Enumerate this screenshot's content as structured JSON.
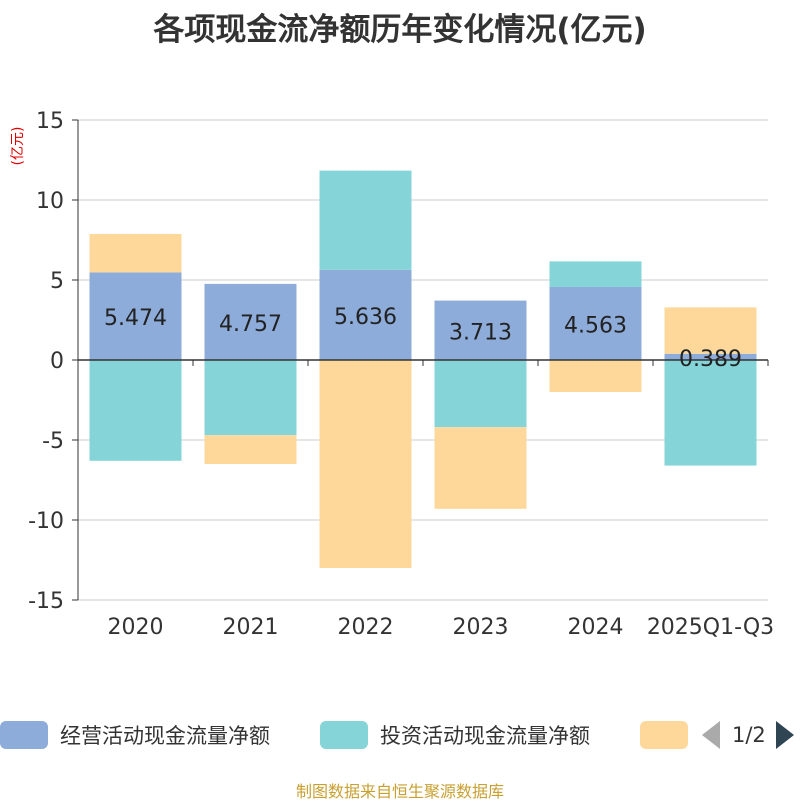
{
  "title": "各项现金流净额历年变化情况(亿元)",
  "footer": "制图数据来自恒生聚源数据库",
  "pager": "1/2",
  "colors": {
    "operating": "#8eacda",
    "investing": "#85d5d8",
    "financing": "#fdd89a"
  },
  "chart_data": {
    "type": "bar",
    "stacked": true,
    "ylabel": "(亿元)",
    "ylim": [
      -15,
      15
    ],
    "yticks": [
      -15,
      -10,
      -5,
      0,
      5,
      10,
      15
    ],
    "grid": true,
    "legend_position": "bottom",
    "categories": [
      "2020",
      "2021",
      "2022",
      "2023",
      "2024",
      "2025Q1-Q3"
    ],
    "series": [
      {
        "name": "经营活动现金流量净额",
        "values": [
          5.474,
          4.757,
          5.636,
          3.713,
          4.563,
          0.389
        ],
        "labels": [
          "5.474",
          "4.757",
          "5.636",
          "3.713",
          "4.563",
          "0.389"
        ]
      },
      {
        "name": "投资活动现金流量净额",
        "values": [
          -6.3,
          -4.7,
          6.2,
          -4.2,
          1.6,
          -6.6
        ]
      },
      {
        "name": "",
        "values": [
          2.4,
          -1.8,
          -13.0,
          -5.1,
          -2.0,
          2.9
        ]
      }
    ]
  }
}
